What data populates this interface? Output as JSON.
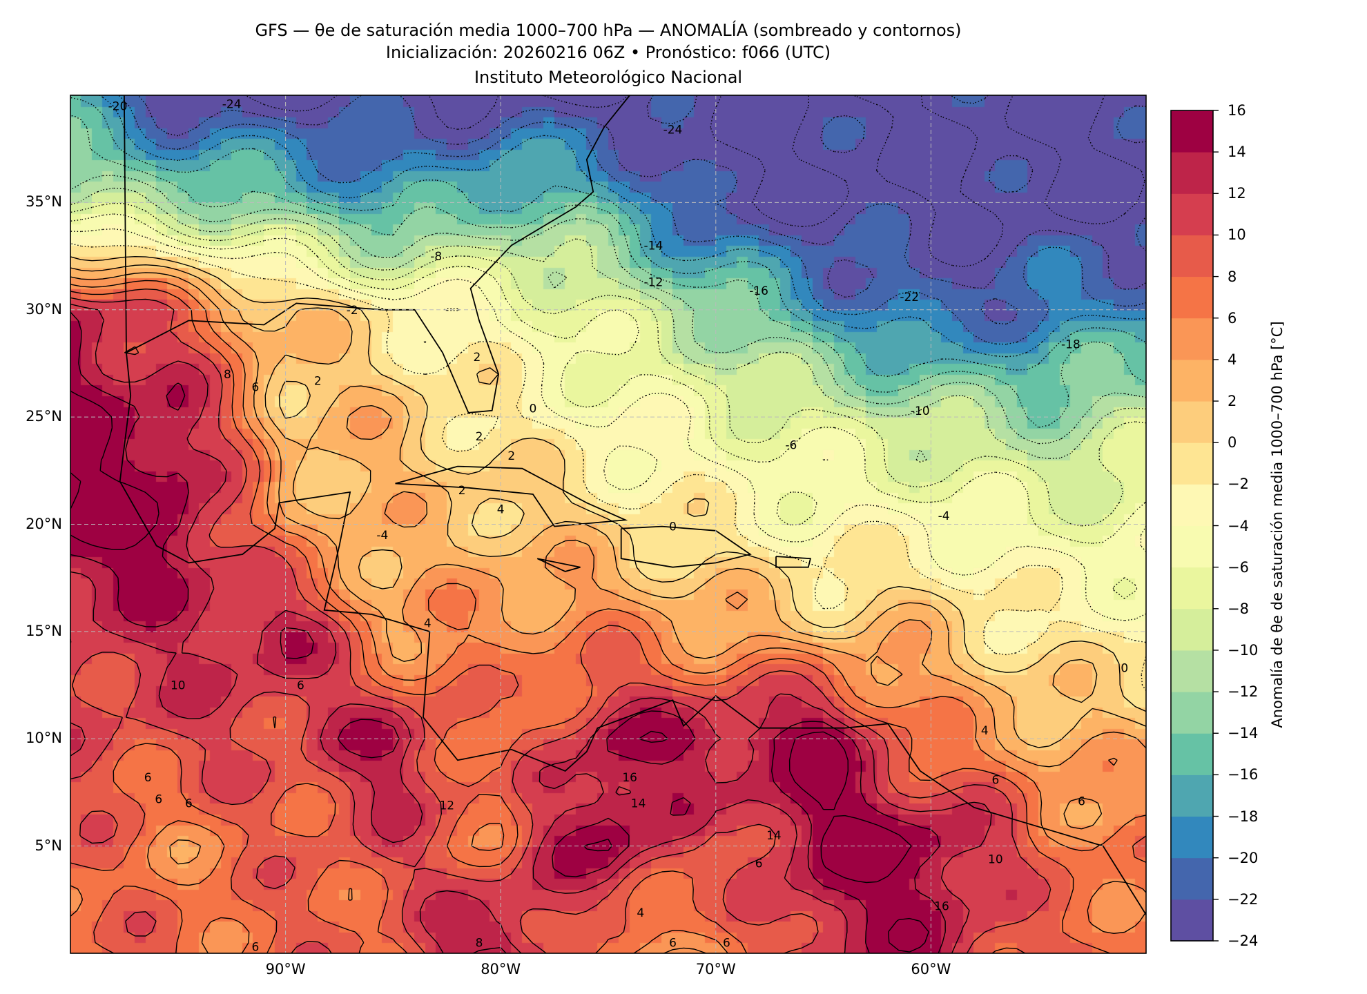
{
  "title": {
    "line1": "GFS — θe de saturación media 1000–700 hPa — ANOMALÍA (sombreado y contornos)",
    "line2": "Inicialización: 20260216 06Z   •   Pronóstico: f066 (UTC)",
    "line3": "Instituto Meteorológico Nacional"
  },
  "chart_data": {
    "type": "heatmap",
    "title": "GFS — θe de saturación media 1000–700 hPa — ANOMALÍA (sombreado y contornos)",
    "xlabel": "",
    "ylabel": "",
    "xlim": [
      -100,
      -50
    ],
    "ylim": [
      0,
      40
    ],
    "grid": true,
    "x_ticks": [
      {
        "value": -90,
        "label": "90°W"
      },
      {
        "value": -80,
        "label": "80°W"
      },
      {
        "value": -70,
        "label": "70°W"
      },
      {
        "value": -60,
        "label": "60°W"
      }
    ],
    "y_ticks": [
      {
        "value": 35,
        "label": "35°N"
      },
      {
        "value": 30,
        "label": "30°N"
      },
      {
        "value": 25,
        "label": "25°N"
      },
      {
        "value": 20,
        "label": "20°N"
      },
      {
        "value": 15,
        "label": "15°N"
      },
      {
        "value": 10,
        "label": "10°N"
      },
      {
        "value": 5,
        "label": "5°N"
      }
    ],
    "grid_lons": [
      -100,
      -95,
      -90,
      -85,
      -80,
      -75,
      -70,
      -65,
      -60,
      -55,
      -50
    ],
    "grid_lats": [
      40,
      35,
      30,
      25,
      20,
      15,
      10,
      5,
      0
    ],
    "values_approx": [
      [
        -18,
        -24,
        -24,
        -24,
        -24,
        -24,
        -24,
        -24,
        -24,
        -24,
        -24
      ],
      [
        -10,
        -12,
        -14,
        -18,
        -14,
        -16,
        -24,
        -24,
        -24,
        -24,
        -24
      ],
      [
        14,
        8,
        2,
        -2,
        -4,
        -8,
        -12,
        -18,
        -22,
        -20,
        -18
      ],
      [
        16,
        14,
        2,
        2,
        -2,
        -4,
        -6,
        -8,
        -10,
        -12,
        -10
      ],
      [
        16,
        16,
        4,
        2,
        2,
        0,
        -2,
        -4,
        -4,
        -6,
        -6
      ],
      [
        12,
        12,
        14,
        4,
        6,
        6,
        4,
        2,
        2,
        -2,
        -2
      ],
      [
        10,
        10,
        10,
        14,
        6,
        14,
        14,
        16,
        6,
        4,
        2
      ],
      [
        8,
        6,
        8,
        10,
        8,
        16,
        8,
        16,
        16,
        8,
        6
      ],
      [
        8,
        8,
        8,
        8,
        16,
        4,
        6,
        12,
        14,
        8,
        8
      ]
    ],
    "levels": [
      -24,
      -22,
      -20,
      -18,
      -16,
      -14,
      -12,
      -10,
      -8,
      -6,
      -4,
      -2,
      0,
      2,
      4,
      6,
      8,
      10,
      12,
      14,
      16
    ],
    "colors": [
      "#5e4fa2",
      "#4466ad",
      "#3288bd",
      "#4fa6b0",
      "#66c2a5",
      "#93d4a4",
      "#b5e0a3",
      "#d5ee9b",
      "#eaf69e",
      "#f8fbb0",
      "#fef8b4",
      "#fee593",
      "#fdcd7c",
      "#fdb365",
      "#fa9656",
      "#f57446",
      "#e75b4a",
      "#d53e4f",
      "#be2449",
      "#9e0142"
    ],
    "colorbar": {
      "label": "Anomalía de θe de saturación media 1000–700 hPa [°C]",
      "ticks": [
        "16",
        "14",
        "12",
        "10",
        "8",
        "6",
        "4",
        "2",
        "0",
        "−2",
        "−4",
        "−6",
        "−8",
        "−10",
        "−12",
        "−14",
        "−16",
        "−18",
        "−20",
        "−22",
        "−24"
      ],
      "placement": "right"
    },
    "contour_labels": [
      {
        "text": "-20",
        "lon": -97.8,
        "lat": 39.5
      },
      {
        "text": "-24",
        "lon": -92.5,
        "lat": 39.6
      },
      {
        "text": "-24",
        "lon": -72,
        "lat": 38.4
      },
      {
        "text": "-8",
        "lon": -83,
        "lat": 32.5
      },
      {
        "text": "-14",
        "lon": -72.9,
        "lat": 33
      },
      {
        "text": "-12",
        "lon": -72.9,
        "lat": 31.3
      },
      {
        "text": "-16",
        "lon": -68,
        "lat": 30.9
      },
      {
        "text": "-22",
        "lon": -61,
        "lat": 30.6
      },
      {
        "text": "-18",
        "lon": -53.5,
        "lat": 28.4
      },
      {
        "text": "-2",
        "lon": -86.9,
        "lat": 30
      },
      {
        "text": "2",
        "lon": -88.5,
        "lat": 26.7
      },
      {
        "text": "8",
        "lon": -92.7,
        "lat": 27
      },
      {
        "text": "6",
        "lon": -91.4,
        "lat": 26.4
      },
      {
        "text": "2",
        "lon": -81.1,
        "lat": 27.8
      },
      {
        "text": "0",
        "lon": -78.5,
        "lat": 25.4
      },
      {
        "text": "2",
        "lon": -81,
        "lat": 24.1
      },
      {
        "text": "2",
        "lon": -79.5,
        "lat": 23.2
      },
      {
        "text": "2",
        "lon": -81.8,
        "lat": 21.6
      },
      {
        "text": "4",
        "lon": -80,
        "lat": 20.7
      },
      {
        "text": "-4",
        "lon": -85.5,
        "lat": 19.5
      },
      {
        "text": "0",
        "lon": -72,
        "lat": 19.9
      },
      {
        "text": "-10",
        "lon": -60.5,
        "lat": 25.3
      },
      {
        "text": "-6",
        "lon": -66.5,
        "lat": 23.7
      },
      {
        "text": "-4",
        "lon": -59.4,
        "lat": 20.4
      },
      {
        "text": "0",
        "lon": -51,
        "lat": 13.3
      },
      {
        "text": "4",
        "lon": -57.5,
        "lat": 10.4
      },
      {
        "text": "10",
        "lon": -95,
        "lat": 12.5
      },
      {
        "text": "6",
        "lon": -89.3,
        "lat": 12.5
      },
      {
        "text": "12",
        "lon": -82.5,
        "lat": 6.9
      },
      {
        "text": "6",
        "lon": -96.4,
        "lat": 8.2
      },
      {
        "text": "6",
        "lon": -95.9,
        "lat": 7.2
      },
      {
        "text": "6",
        "lon": -94.5,
        "lat": 7
      },
      {
        "text": "6",
        "lon": -57,
        "lat": 8.1
      },
      {
        "text": "6",
        "lon": -53,
        "lat": 7.1
      },
      {
        "text": "10",
        "lon": -57,
        "lat": 4.4
      },
      {
        "text": "16",
        "lon": -59.5,
        "lat": 2.2
      },
      {
        "text": "14",
        "lon": -67.3,
        "lat": 5.5
      },
      {
        "text": "6",
        "lon": -68,
        "lat": 4.2
      },
      {
        "text": "4",
        "lon": -73.5,
        "lat": 1.9
      },
      {
        "text": "6",
        "lon": -72,
        "lat": 0.5
      },
      {
        "text": "6",
        "lon": -69.5,
        "lat": 0.5
      },
      {
        "text": "8",
        "lon": -81,
        "lat": 0.5
      },
      {
        "text": "16",
        "lon": -74,
        "lat": 8.2
      },
      {
        "text": "14",
        "lon": -73.6,
        "lat": 7
      },
      {
        "text": "4",
        "lon": -83.4,
        "lat": 15.4
      },
      {
        "text": "6",
        "lon": -91.4,
        "lat": 0.3
      }
    ]
  }
}
